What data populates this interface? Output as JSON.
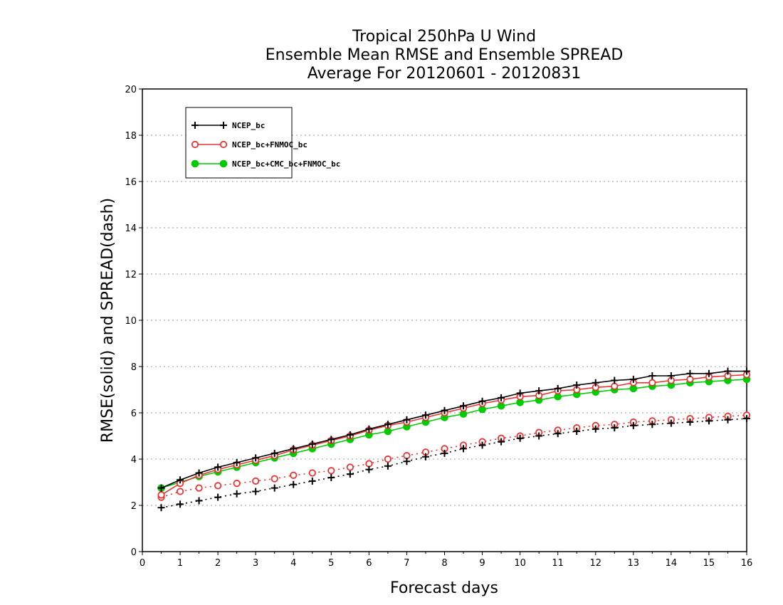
{
  "chart_data": {
    "type": "line",
    "title_lines": [
      "Tropical 250hPa U Wind",
      "Ensemble Mean RMSE and Ensemble SPREAD",
      "Average For 20120601 - 20120831"
    ],
    "xlabel": "Forecast days",
    "ylabel": "RMSE(solid) and SPREAD(dash)",
    "xlim": [
      0,
      16
    ],
    "ylim": [
      0,
      20
    ],
    "xticks": [
      0,
      1,
      2,
      3,
      4,
      5,
      6,
      7,
      8,
      9,
      10,
      11,
      12,
      13,
      14,
      15,
      16
    ],
    "yticks": [
      0,
      2,
      4,
      6,
      8,
      10,
      12,
      14,
      16,
      18,
      20
    ],
    "grid": "horizontal dotted",
    "legend_position": "top-left",
    "x": [
      0.5,
      1,
      1.5,
      2,
      2.5,
      3,
      3.5,
      4,
      4.5,
      5,
      5.5,
      6,
      6.5,
      7,
      7.5,
      8,
      8.5,
      9,
      9.5,
      10,
      10.5,
      11,
      11.5,
      12,
      12.5,
      13,
      13.5,
      14,
      14.5,
      15,
      15.5,
      16
    ],
    "series": [
      {
        "name": "NCEP_bc",
        "color": "#000000",
        "marker": "plus",
        "rmse": [
          2.75,
          3.1,
          3.4,
          3.65,
          3.85,
          4.05,
          4.25,
          4.45,
          4.65,
          4.85,
          5.05,
          5.3,
          5.5,
          5.7,
          5.9,
          6.1,
          6.3,
          6.5,
          6.65,
          6.85,
          6.95,
          7.05,
          7.2,
          7.3,
          7.4,
          7.45,
          7.6,
          7.6,
          7.7,
          7.7,
          7.8,
          7.8
        ],
        "spread": [
          1.9,
          2.05,
          2.2,
          2.35,
          2.5,
          2.6,
          2.75,
          2.9,
          3.05,
          3.2,
          3.35,
          3.55,
          3.7,
          3.9,
          4.1,
          4.25,
          4.45,
          4.6,
          4.75,
          4.9,
          5.0,
          5.1,
          5.2,
          5.3,
          5.35,
          5.45,
          5.5,
          5.55,
          5.6,
          5.65,
          5.7,
          5.75
        ]
      },
      {
        "name": "NCEP_bc+FNMOC_bc",
        "color": "#ee3333",
        "marker": "open-circle",
        "rmse": [
          2.45,
          2.95,
          3.3,
          3.55,
          3.75,
          3.95,
          4.15,
          4.4,
          4.6,
          4.8,
          5.0,
          5.25,
          5.45,
          5.6,
          5.8,
          6.0,
          6.2,
          6.4,
          6.55,
          6.7,
          6.75,
          6.95,
          7.0,
          7.1,
          7.15,
          7.3,
          7.3,
          7.4,
          7.45,
          7.55,
          7.6,
          7.65
        ],
        "spread": [
          2.35,
          2.6,
          2.75,
          2.85,
          2.95,
          3.05,
          3.15,
          3.3,
          3.4,
          3.5,
          3.65,
          3.8,
          4.0,
          4.15,
          4.3,
          4.45,
          4.6,
          4.75,
          4.9,
          5.0,
          5.15,
          5.25,
          5.35,
          5.45,
          5.5,
          5.6,
          5.65,
          5.7,
          5.75,
          5.8,
          5.85,
          5.9
        ]
      },
      {
        "name": "NCEP_bc+CMC_bc+FNMOC_bc",
        "color": "#00cc00",
        "marker": "filled-circle",
        "rmse": [
          2.75,
          3.0,
          3.25,
          3.45,
          3.65,
          3.85,
          4.05,
          4.25,
          4.45,
          4.65,
          4.85,
          5.05,
          5.2,
          5.4,
          5.6,
          5.8,
          5.95,
          6.15,
          6.3,
          6.45,
          6.55,
          6.7,
          6.8,
          6.9,
          7.0,
          7.05,
          7.15,
          7.2,
          7.3,
          7.35,
          7.4,
          7.45
        ],
        "spread": []
      }
    ]
  }
}
